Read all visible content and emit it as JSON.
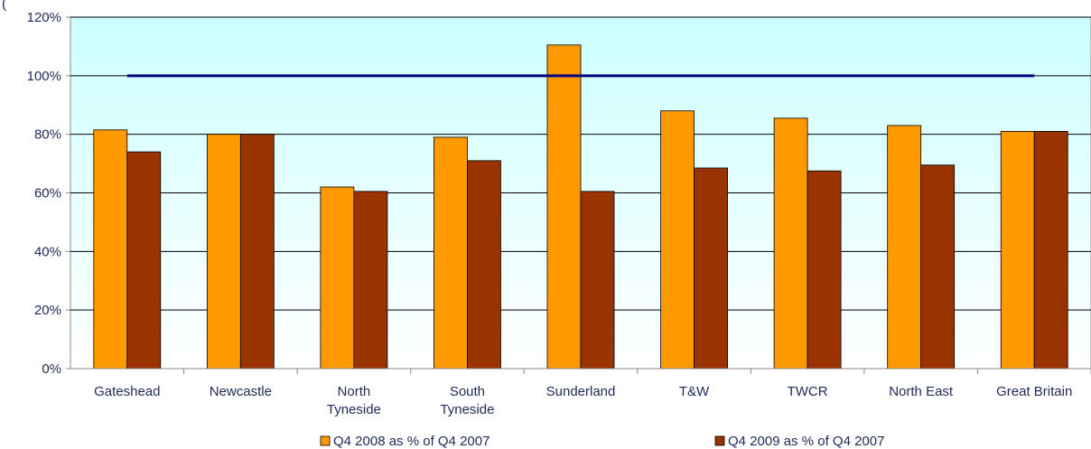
{
  "chart_data": {
    "type": "bar",
    "categories": [
      [
        "Gateshead"
      ],
      [
        "Newcastle"
      ],
      [
        "North",
        "Tyneside"
      ],
      [
        "South",
        "Tyneside"
      ],
      [
        "Sunderland"
      ],
      [
        "T&W"
      ],
      [
        "TWCR"
      ],
      [
        "North East"
      ],
      [
        "Great Britain"
      ]
    ],
    "series": [
      {
        "name": "Q4 2008 as % of Q4 2007",
        "color": "#FF9900",
        "values": [
          81.5,
          80,
          62,
          79,
          110.5,
          88,
          85.5,
          83,
          81
        ]
      },
      {
        "name": "Q4 2009 as % of Q4 2007",
        "color": "#993300",
        "values": [
          74,
          80,
          60.5,
          71,
          60.5,
          68.5,
          67.5,
          69.5,
          81
        ]
      }
    ],
    "reference_line": {
      "value": 100,
      "color": "#000080"
    },
    "ylim": [
      0,
      120
    ],
    "yticks": [
      0,
      20,
      40,
      60,
      80,
      100,
      120
    ],
    "ytick_labels": [
      "0%",
      "20%",
      "40%",
      "60%",
      "80%",
      "100%",
      "120%"
    ],
    "grid": true,
    "legend_position": "bottom",
    "top_left_fragment": "(",
    "plot_background": [
      "#CCFFFF",
      "#FFFFFF"
    ]
  }
}
